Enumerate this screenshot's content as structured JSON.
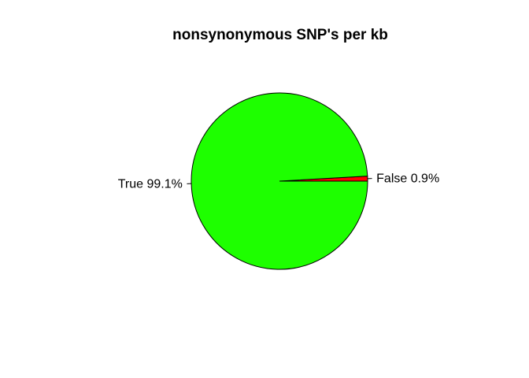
{
  "chart_data": {
    "type": "pie",
    "title": "nonsynonymous SNP's per kb",
    "slices": [
      {
        "label": "False 0.9%",
        "value": 0.9,
        "color": "#FF0000"
      },
      {
        "label": "True 99.1%",
        "value": 99.1,
        "color": "#1EFF00"
      }
    ],
    "start_angle_deg": 0,
    "direction": "counterclockwise",
    "border_color": "#000000",
    "legend": "none"
  }
}
